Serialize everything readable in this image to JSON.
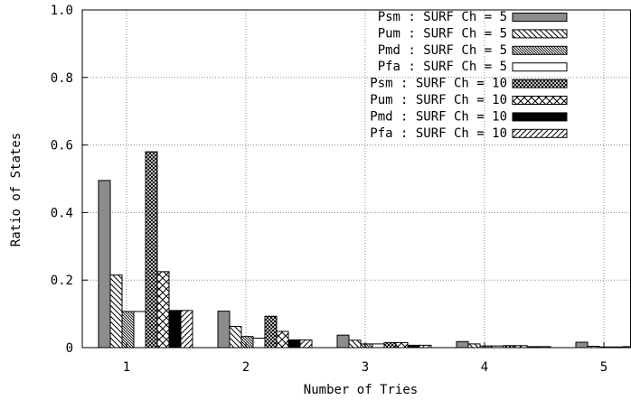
{
  "chart_data": {
    "type": "bar",
    "xlabel": "Number of Tries",
    "ylabel": "Ratio of States",
    "ylim": [
      0,
      1.0
    ],
    "yticks": [
      "0",
      "0.2",
      "0.4",
      "0.6",
      "0.8",
      "1.0"
    ],
    "categories": [
      "1",
      "2",
      "3",
      "4",
      "5"
    ],
    "grid": true,
    "legend_position": "top-right",
    "series": [
      {
        "name": "Psm : SURF Ch = 5",
        "pattern": "gray",
        "values": [
          0.495,
          0.108,
          0.037,
          0.018,
          0.016
        ]
      },
      {
        "name": "Pum : SURF Ch = 5",
        "pattern": "diag-back",
        "values": [
          0.215,
          0.063,
          0.022,
          0.011,
          0.004
        ]
      },
      {
        "name": "Pmd : SURF Ch = 5",
        "pattern": "diag-dense",
        "values": [
          0.107,
          0.033,
          0.011,
          0.005,
          0.002
        ]
      },
      {
        "name": "Pfa : SURF Ch = 5",
        "pattern": "white",
        "values": [
          0.107,
          0.028,
          0.011,
          0.005,
          0.002
        ]
      },
      {
        "name": "Psm : SURF Ch = 10",
        "pattern": "crosshatch",
        "values": [
          0.58,
          0.093,
          0.015,
          0.006,
          0.003
        ]
      },
      {
        "name": "Pum : SURF Ch = 10",
        "pattern": "x-hatch",
        "values": [
          0.225,
          0.048,
          0.015,
          0.006,
          0.003
        ]
      },
      {
        "name": "Pmd : SURF Ch = 10",
        "pattern": "black",
        "values": [
          0.11,
          0.023,
          0.007,
          0.003,
          0.001
        ]
      },
      {
        "name": "Pfa : SURF Ch = 10",
        "pattern": "diag-fwd",
        "values": [
          0.11,
          0.023,
          0.007,
          0.003,
          0.001
        ]
      }
    ]
  }
}
